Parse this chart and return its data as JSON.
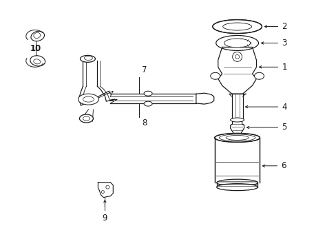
{
  "bg_color": "#ffffff",
  "line_color": "#1a1a1a",
  "fig_width": 4.89,
  "fig_height": 3.6,
  "dpi": 100,
  "xlim": [
    0,
    4.89
  ],
  "ylim": [
    0,
    3.6
  ],
  "label_fontsize": 8.5
}
